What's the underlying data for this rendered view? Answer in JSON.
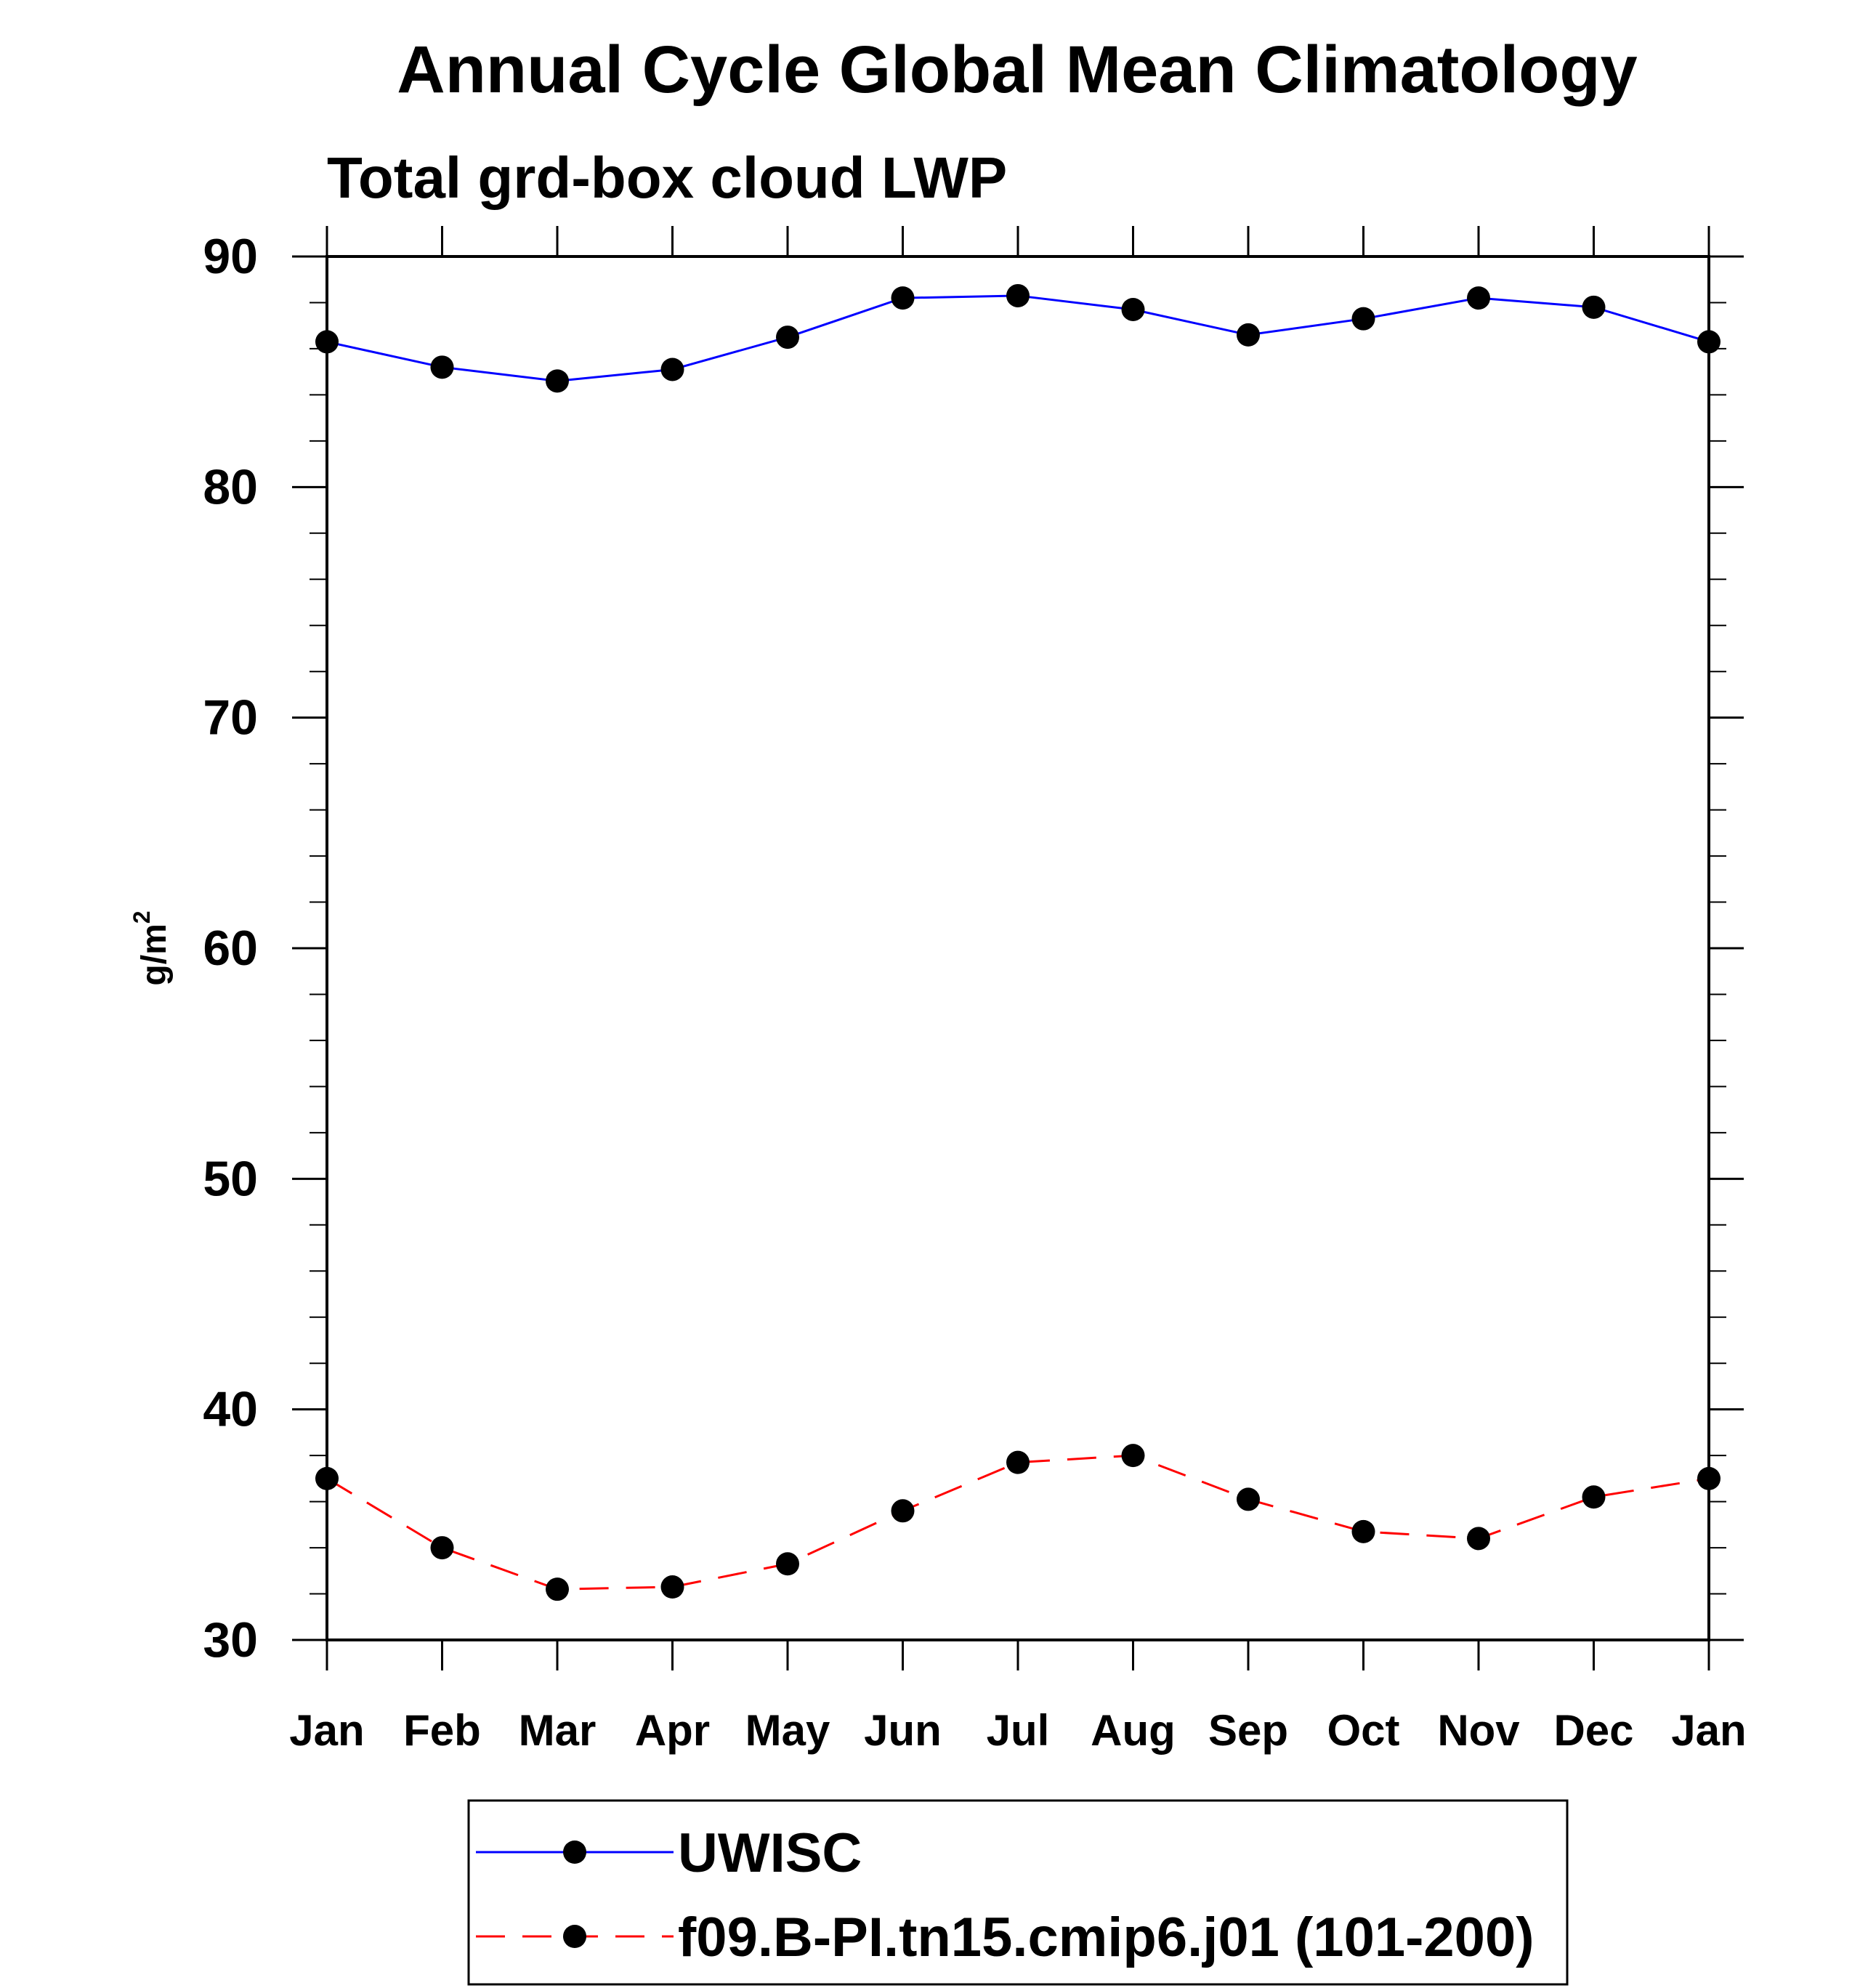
{
  "chart_data": {
    "type": "line",
    "title": "Annual Cycle Global Mean Climatology",
    "subtitle": "Total grd-box cloud LWP",
    "xlabel": "",
    "ylabel": "g/m",
    "ylabel_superscript": "2",
    "categories": [
      "Jan",
      "Feb",
      "Mar",
      "Apr",
      "May",
      "Jun",
      "Jul",
      "Aug",
      "Sep",
      "Oct",
      "Nov",
      "Dec",
      "Jan"
    ],
    "ylim": [
      30,
      90
    ],
    "yticks": [
      30,
      40,
      50,
      60,
      70,
      80,
      90
    ],
    "grid": false,
    "legend_position": "bottom",
    "series": [
      {
        "name": "UWISC",
        "color": "#0000ff",
        "dash": "solid",
        "values": [
          86.3,
          85.2,
          84.6,
          85.1,
          86.5,
          88.2,
          88.3,
          87.7,
          86.6,
          87.3,
          88.2,
          87.8,
          86.3
        ]
      },
      {
        "name": "f09.B-PI.tn15.cmip6.j01 (101-200)",
        "color": "#ff0000",
        "dash": "dashed",
        "values": [
          37.0,
          34.0,
          32.2,
          32.3,
          33.3,
          35.6,
          37.7,
          38.0,
          36.1,
          34.7,
          34.4,
          36.2,
          37.0
        ]
      }
    ]
  }
}
